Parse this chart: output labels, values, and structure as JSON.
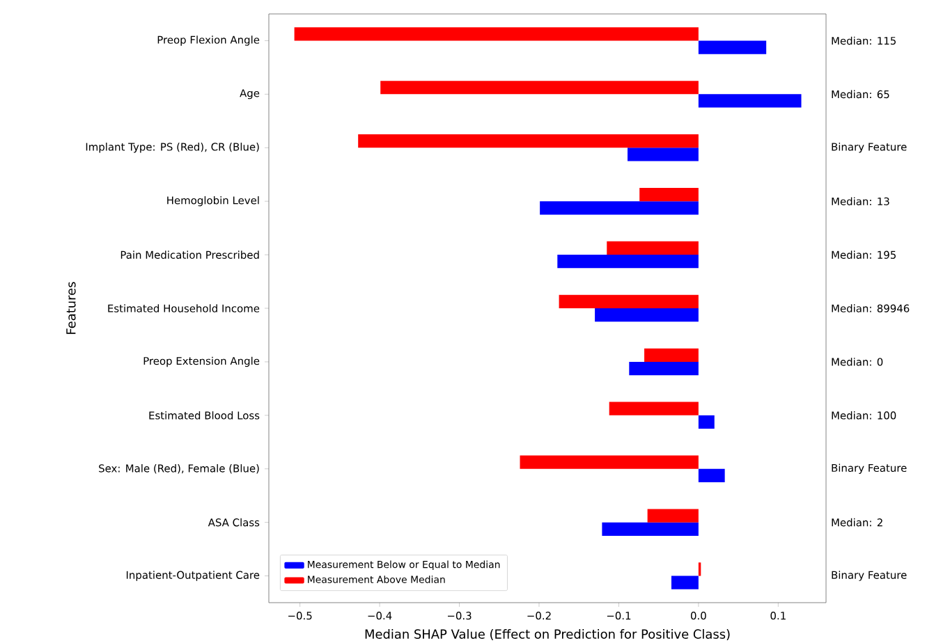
{
  "chart_data": {
    "type": "bar",
    "orientation": "horizontal",
    "xlabel": "Median SHAP Value (Effect on Prediction for Positive Class)",
    "ylabel": "Features",
    "categories": [
      "Preop Flexion Angle",
      "Age",
      "Implant Type: PS (Red), CR (Blue)",
      "Hemoglobin Level",
      "Pain Medication Prescribed",
      "Estimated Household Income",
      "Preop Extension Angle",
      "Estimated Blood Loss",
      "Sex: Male (Red), Female (Blue)",
      "ASA Class",
      "Inpatient-Outpatient Care"
    ],
    "series": [
      {
        "name": "Measurement Below or Equal to Median",
        "color": "#0000ff",
        "values": [
          0.085,
          0.129,
          -0.089,
          -0.199,
          -0.177,
          -0.13,
          -0.087,
          0.02,
          0.033,
          -0.121,
          -0.034
        ]
      },
      {
        "name": "Measurement Above Median",
        "color": "#ff0000",
        "values": [
          -0.507,
          -0.399,
          -0.427,
          -0.074,
          -0.115,
          -0.175,
          -0.068,
          -0.112,
          -0.224,
          -0.064,
          0.003
        ]
      }
    ],
    "xlim": [
      -0.539,
      0.16
    ],
    "xticks": [
      {
        "value": -0.5,
        "label": "−0.5"
      },
      {
        "value": -0.4,
        "label": "−0.4"
      },
      {
        "value": -0.3,
        "label": "−0.3"
      },
      {
        "value": -0.2,
        "label": "−0.2"
      },
      {
        "value": -0.1,
        "label": "−0.1"
      },
      {
        "value": 0.0,
        "label": "0.0"
      },
      0.1
    ],
    "annotations": [
      "Median: 115",
      "Median: 65",
      "Binary Feature",
      "Median: 13",
      "Median: 195",
      "Median: 89946",
      "Median: 0",
      "Median: 100",
      "Binary Feature",
      "Median: 2",
      "Binary Feature"
    ],
    "legend": "bottom left",
    "grid": false
  }
}
